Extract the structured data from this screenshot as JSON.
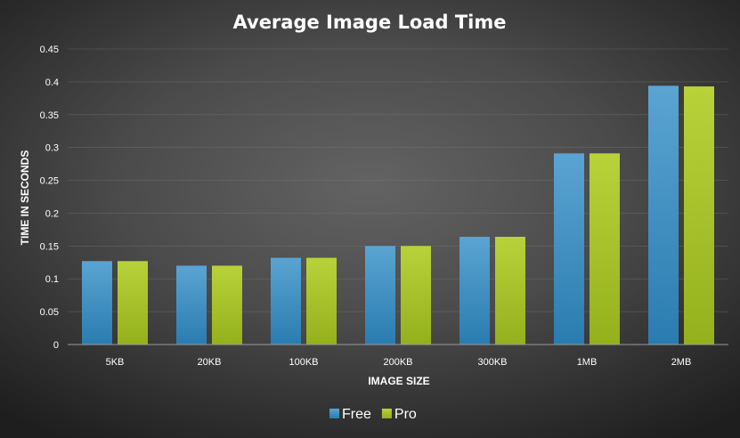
{
  "chart_data": {
    "type": "bar",
    "title": "Average Image Load Time",
    "xlabel": "IMAGE SIZE",
    "ylabel": "TIME IN SECONDS",
    "categories": [
      "5KB",
      "20KB",
      "100KB",
      "200KB",
      "300KB",
      "1MB",
      "2MB"
    ],
    "series": [
      {
        "name": "Free",
        "values": [
          0.127,
          0.12,
          0.132,
          0.15,
          0.164,
          0.291,
          0.394
        ],
        "color": "#3f8fc0"
      },
      {
        "name": "Pro",
        "values": [
          0.127,
          0.12,
          0.132,
          0.15,
          0.164,
          0.291,
          0.393
        ],
        "color": "#a4c12a"
      }
    ],
    "ylim": [
      0,
      0.45
    ],
    "yticks": [
      "0",
      "0.05",
      "0.1",
      "0.15",
      "0.2",
      "0.25",
      "0.3",
      "0.35",
      "0.4",
      "0.45"
    ],
    "grid": true,
    "legend_position": "bottom"
  }
}
